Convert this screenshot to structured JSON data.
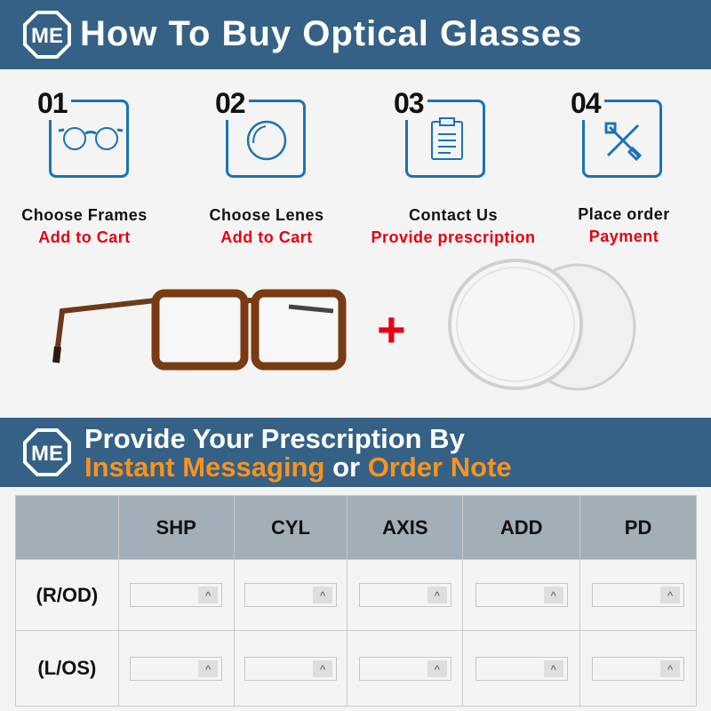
{
  "header": {
    "logo": "ME",
    "title": "How To Buy Optical Glasses"
  },
  "steps": [
    {
      "num": "01",
      "label": "Choose Frames",
      "sub": "Add to Cart",
      "icon": "glasses-icon"
    },
    {
      "num": "02",
      "label": "Choose Lenes",
      "sub": "Add to Cart",
      "icon": "lens-icon"
    },
    {
      "num": "03",
      "label": "Contact Us",
      "sub": "Provide prescription",
      "icon": "clipboard-icon"
    },
    {
      "num": "04",
      "label": "Place order",
      "sub": "Payment",
      "icon": "tools-icon"
    }
  ],
  "plus": "+",
  "section2": {
    "logo": "ME",
    "line1": "Provide Your Prescription By",
    "highlight1": "Instant Messaging",
    "connector": "or",
    "highlight2": "Order Note"
  },
  "table": {
    "columns": [
      "",
      "SHP",
      "CYL",
      "AXIS",
      "ADD",
      "PD"
    ],
    "rows": [
      {
        "label": "(R/OD)"
      },
      {
        "label": "(L/OS)"
      }
    ],
    "spinner_glyph": "^"
  },
  "colors": {
    "banner": "#356187",
    "accent": "#1a73b5",
    "red": "#e60012",
    "orange": "#f7941d"
  }
}
